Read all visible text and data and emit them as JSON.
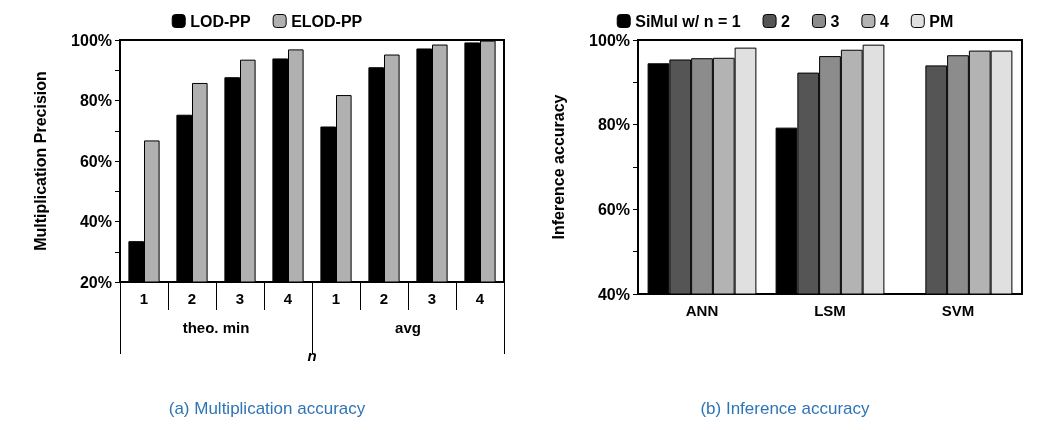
{
  "chart_data": [
    {
      "type": "bar",
      "title": "(a) Multiplication accuracy",
      "ylabel": "Multiplication Precision",
      "xlabel": "n",
      "categories": [
        "1",
        "2",
        "3",
        "4",
        "1",
        "2",
        "3",
        "4"
      ],
      "annotations": [
        "theo. min",
        "avg"
      ],
      "series": [
        {
          "name": "LOD-PP",
          "color": "#000000",
          "values": [
            33.5,
            75.3,
            87.7,
            93.9,
            71.4,
            91,
            97.2,
            99.2
          ]
        },
        {
          "name": "ELOD-PP",
          "color": "#b0b0b0",
          "values": [
            66.8,
            85.8,
            93.5,
            96.9,
            81.8,
            95.2,
            98.5,
            99.8
          ]
        }
      ],
      "ylim": [
        20,
        100
      ],
      "yticks": [
        {
          "value": 20,
          "label": "20%"
        },
        {
          "value": 30,
          "label": null
        },
        {
          "value": 40,
          "label": "40%"
        },
        {
          "value": 50,
          "label": null
        },
        {
          "value": 60,
          "label": "60%"
        },
        {
          "value": 70,
          "label": null
        },
        {
          "value": 80,
          "label": "80%"
        },
        {
          "value": 90,
          "label": null
        },
        {
          "value": 100,
          "label": "100%"
        }
      ],
      "grid": false,
      "legend": "top"
    },
    {
      "type": "bar",
      "title": "(b) Inference accuracy",
      "ylabel": "Inference accuracy",
      "categories": [
        "ANN",
        "LSM",
        "SVM"
      ],
      "series": [
        {
          "name": "SiMul w/ n = 1",
          "color": "#000000",
          "values": [
            94.5,
            79.3,
            null
          ]
        },
        {
          "name": "2",
          "color": "#555555",
          "values": [
            95.4,
            92.3,
            94
          ]
        },
        {
          "name": "3",
          "color": "#8c8c8c",
          "values": [
            95.7,
            96.2,
            96.4
          ]
        },
        {
          "name": "4",
          "color": "#b3b3b3",
          "values": [
            95.8,
            97.7,
            97.5
          ]
        },
        {
          "name": "PM",
          "color": "#e0e0e0",
          "values": [
            98.2,
            98.9,
            97.5
          ]
        }
      ],
      "ylim": [
        40,
        100
      ],
      "yticks": [
        {
          "value": 40,
          "label": "40%"
        },
        {
          "value": 50,
          "label": null
        },
        {
          "value": 60,
          "label": "60%"
        },
        {
          "value": 70,
          "label": null
        },
        {
          "value": 80,
          "label": "80%"
        },
        {
          "value": 90,
          "label": null
        },
        {
          "value": 100,
          "label": "100%"
        }
      ],
      "grid": false,
      "legend": "top"
    }
  ]
}
